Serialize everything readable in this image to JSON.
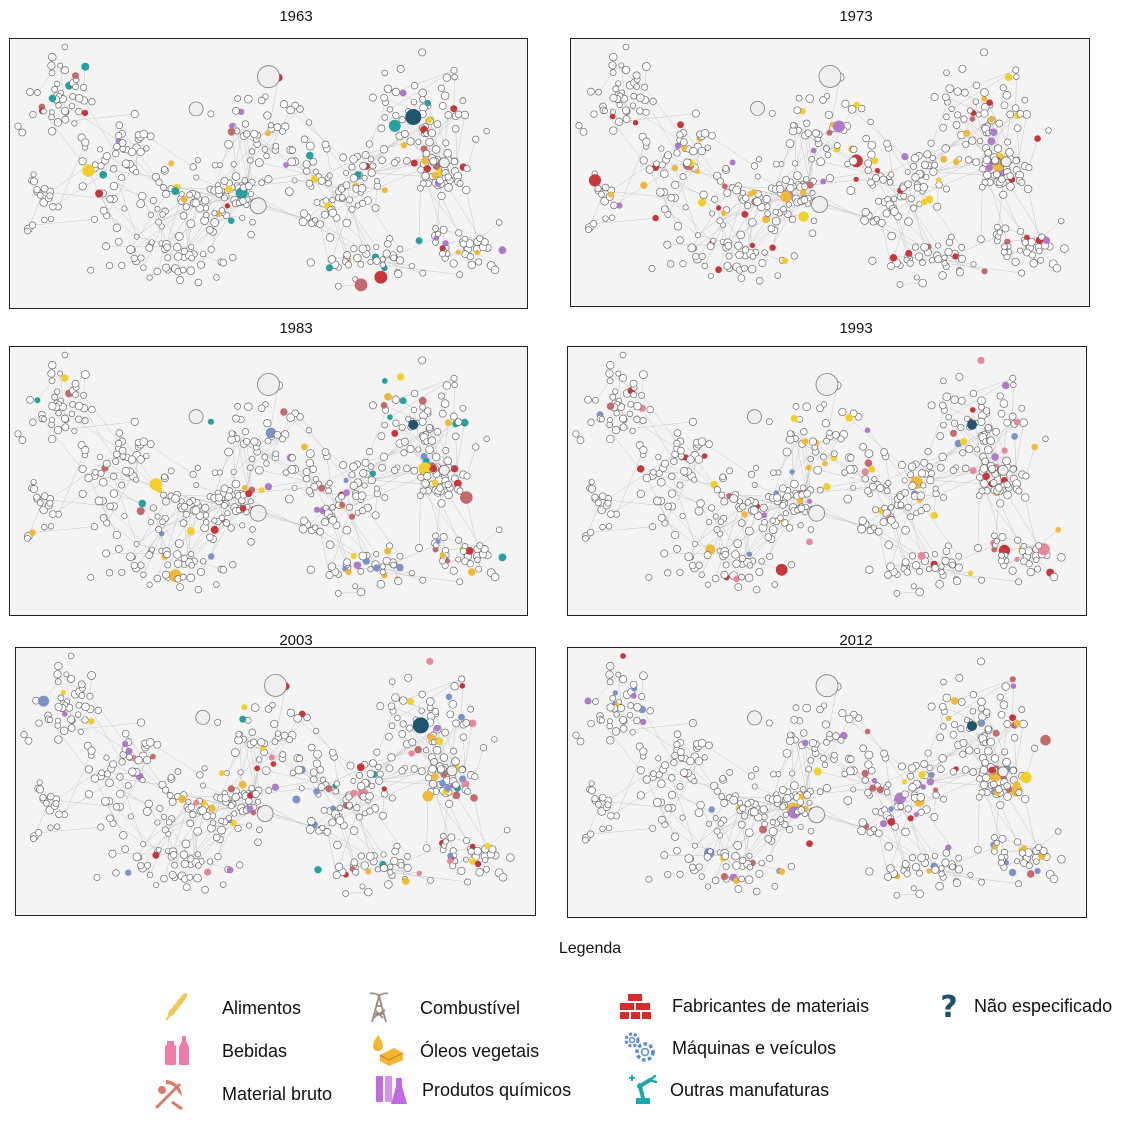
{
  "panels": [
    {
      "year": "1963"
    },
    {
      "year": "1973"
    },
    {
      "year": "1983"
    },
    {
      "year": "1993"
    },
    {
      "year": "2003"
    },
    {
      "year": "2012"
    }
  ],
  "legend": {
    "title": "Legenda",
    "items": [
      {
        "label": "Alimentos",
        "icon": "wheat-icon",
        "color": "#f0c85a"
      },
      {
        "label": "Combustível",
        "icon": "oil-derrick-icon",
        "color": "#9c8a80"
      },
      {
        "label": "Fabricantes de materiais",
        "icon": "bricks-icon",
        "color": "#d62b2b"
      },
      {
        "label": "Não especificado",
        "icon": "question-mark-icon",
        "color": "#1f4f6b"
      },
      {
        "label": "Bebidas",
        "icon": "bottles-icon",
        "color": "#f27aa6"
      },
      {
        "label": "Óleos vegetais",
        "icon": "oil-drop-icon",
        "color": "#f5b533"
      },
      {
        "label": "Máquinas e veículos",
        "icon": "gears-icon",
        "color": "#5b8bd6"
      },
      {
        "label": "Material bruto",
        "icon": "pickaxe-icon",
        "color": "#d97a6b"
      },
      {
        "label": "Produtos químicos",
        "icon": "flask-icon",
        "color": "#c06be0"
      },
      {
        "label": "Outras manufaturas",
        "icon": "robot-arm-icon",
        "color": "#1fa8a8"
      }
    ]
  },
  "node_colors": {
    "empty": "#ffffff",
    "food": "#f2cf2a",
    "fuel": "#a88e85",
    "materials": "#c8363a",
    "unspecified": "#1f5570",
    "beverage": "#e7889a",
    "veg_oil": "#f0b93a",
    "machinery": "#7b93c9",
    "raw": "#c26a6e",
    "chemicals": "#b07acb",
    "other": "#27a0a0"
  }
}
